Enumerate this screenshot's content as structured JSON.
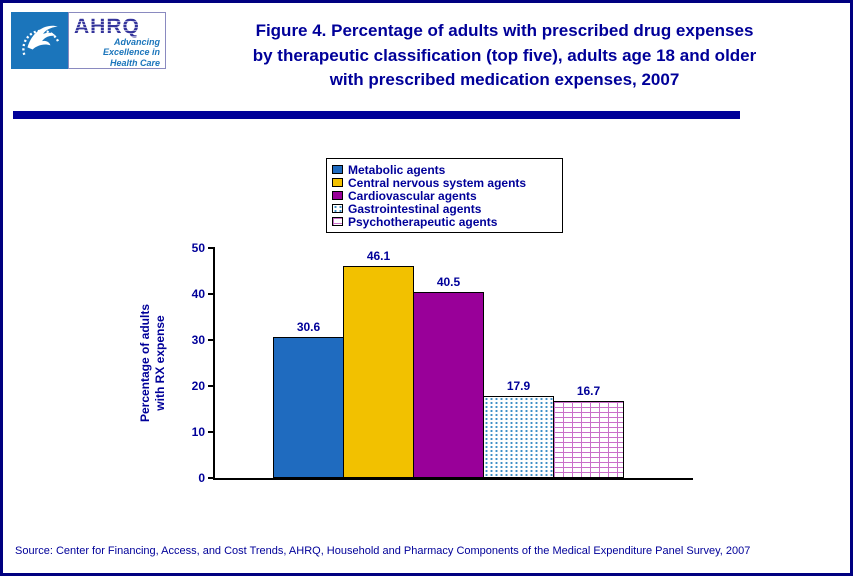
{
  "page": {
    "border_color": "#000080",
    "accent_color": "#000099"
  },
  "header": {
    "title_lines": [
      "Figure 4. Percentage of adults with prescribed drug expenses",
      "by therapeutic classification (top five), adults age 18 and older",
      "with prescribed medication expenses, 2007"
    ],
    "ahrq_logo": {
      "acronym": "AHRQ",
      "tagline_lines": [
        "Advancing",
        "Excellence in",
        "Health Care"
      ]
    }
  },
  "chart_data": {
    "type": "bar",
    "title": "",
    "categories": [
      "Metabolic agents",
      "Central nervous system agents",
      "Cardiovascular agents",
      "Gastrointestinal agents",
      "Psychotherapeutic agents"
    ],
    "values": [
      30.6,
      46.1,
      40.5,
      17.9,
      16.7
    ],
    "value_labels": [
      "30.6",
      "46.1",
      "40.5",
      "17.9",
      "16.7"
    ],
    "xlabel": "",
    "ylabel": "Percentage of adults with RX expense",
    "ylabel_lines": [
      "Percentage of adults",
      "with RX expense"
    ],
    "ylim": [
      0,
      50
    ],
    "yticks": [
      0,
      10,
      20,
      30,
      40,
      50
    ],
    "grid": false,
    "legend_position": "top-center",
    "bar_styles": [
      {
        "fill": "#1F6BBF",
        "pattern": "solid"
      },
      {
        "fill": "#F2C100",
        "pattern": "solid"
      },
      {
        "fill": "#990099",
        "pattern": "solid"
      },
      {
        "fill": "#FFFFFF",
        "pattern": "dots",
        "pattern_color": "#3E8FC7"
      },
      {
        "fill": "#FFFFFF",
        "pattern": "brick",
        "pattern_color": "#C96FC9"
      }
    ]
  },
  "footer": {
    "source": "Source: Center for Financing, Access, and Cost Trends, AHRQ, Household and Pharmacy Components of the Medical Expenditure Panel Survey, 2007"
  }
}
